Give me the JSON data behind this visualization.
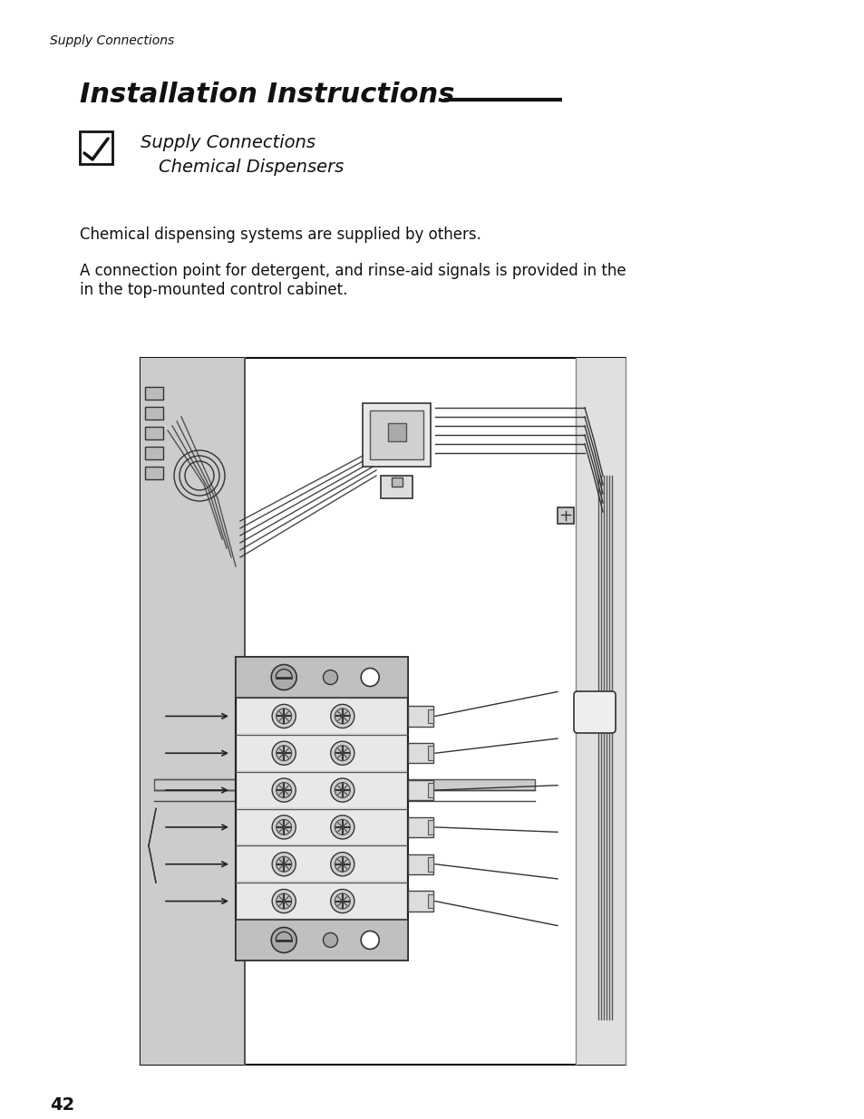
{
  "bg_color": "#ffffff",
  "page_number": "42",
  "header_text": "Supply Connections",
  "title_text": "Installation Instructions",
  "subtitle_line1": "Supply Connections",
  "subtitle_line2": "Chemical Dispensers",
  "body_text1": "Chemical dispensing systems are supplied by others.",
  "body_text2": "A connection point for detergent, and rinse-aid signals is provided in the\nin the top-mounted control cabinet.",
  "title_fontsize": 22,
  "subtitle_fontsize": 14,
  "header_fontsize": 10,
  "body_fontsize": 12
}
